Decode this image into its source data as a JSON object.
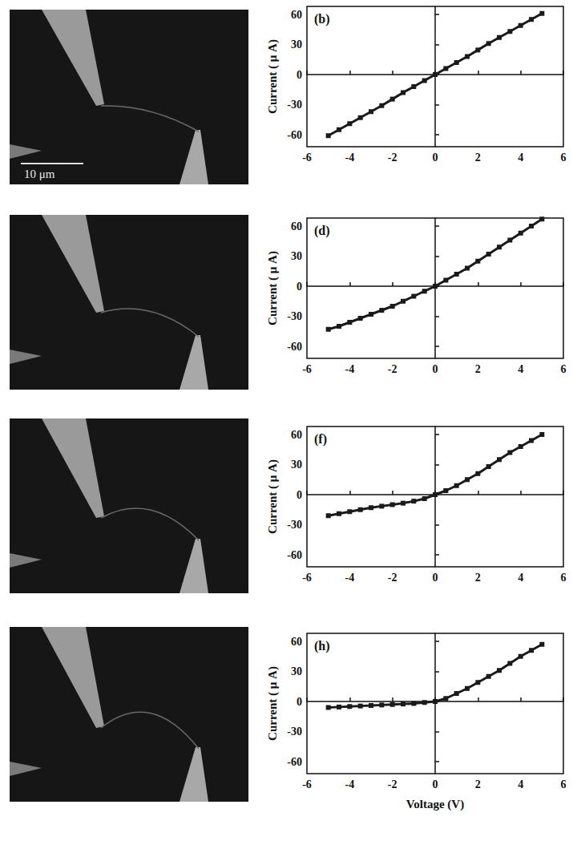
{
  "chart_data": [
    {
      "type": "line",
      "title": "(b)",
      "y_label": "Current ( μ A)",
      "x": [
        -5,
        -4.5,
        -4,
        -3.5,
        -3,
        -2.5,
        -2,
        -1.5,
        -1,
        -0.5,
        0,
        0.5,
        1,
        1.5,
        2,
        2.5,
        3,
        3.5,
        4,
        4.5,
        5
      ],
      "values": [
        -61,
        -55,
        -49,
        -43,
        -37,
        -31,
        -24.5,
        -18,
        -12,
        -6,
        0,
        6,
        12,
        18,
        24.5,
        31,
        37,
        43,
        49,
        55,
        61
      ],
      "xlim": [
        -6,
        6
      ],
      "xticks": [
        -6,
        -4,
        -2,
        0,
        2,
        4,
        6
      ],
      "ylim": [
        -72,
        68
      ],
      "yticks": [
        -60,
        -30,
        0,
        30,
        60
      ],
      "color": "#1a1a1a",
      "marker": "square",
      "grid": false
    },
    {
      "type": "line",
      "title": "(d)",
      "y_label": "Current ( μ A)",
      "x": [
        -5,
        -4.5,
        -4,
        -3.5,
        -3,
        -2.5,
        -2,
        -1.5,
        -1,
        -0.5,
        0,
        0.5,
        1,
        1.5,
        2,
        2.5,
        3,
        3.5,
        4,
        4.5,
        5
      ],
      "values": [
        -43,
        -40,
        -36,
        -32,
        -28,
        -24,
        -20,
        -15,
        -10,
        -5,
        0,
        6,
        12,
        18,
        25,
        32,
        39,
        46,
        53,
        60,
        67
      ],
      "xlim": [
        -6,
        6
      ],
      "xticks": [
        -6,
        -4,
        -2,
        0,
        2,
        4,
        6
      ],
      "ylim": [
        -72,
        68
      ],
      "yticks": [
        -60,
        -30,
        0,
        30,
        60
      ],
      "color": "#1a1a1a",
      "marker": "square",
      "grid": false
    },
    {
      "type": "line",
      "title": "(f)",
      "y_label": "Current ( μ A)",
      "x": [
        -5,
        -4.5,
        -4,
        -3.5,
        -3,
        -2.5,
        -2,
        -1.5,
        -1,
        -0.5,
        0,
        0.5,
        1,
        1.5,
        2,
        2.5,
        3,
        3.5,
        4,
        4.5,
        5
      ],
      "values": [
        -21,
        -19,
        -17,
        -15,
        -13,
        -11.5,
        -10,
        -8.5,
        -6.5,
        -4,
        0,
        4,
        9,
        15,
        21,
        28,
        35,
        42,
        48,
        54,
        60
      ],
      "xlim": [
        -6,
        6
      ],
      "xticks": [
        -6,
        -4,
        -2,
        0,
        2,
        4,
        6
      ],
      "ylim": [
        -72,
        68
      ],
      "yticks": [
        -60,
        -30,
        0,
        30,
        60
      ],
      "color": "#1a1a1a",
      "marker": "square",
      "grid": false
    },
    {
      "type": "line",
      "title": "(h)",
      "y_label": "Current ( μ A)",
      "x_label": "Voltage (V)",
      "x": [
        -5,
        -4.5,
        -4,
        -3.5,
        -3,
        -2.5,
        -2,
        -1.5,
        -1,
        -0.5,
        0,
        0.5,
        1,
        1.5,
        2,
        2.5,
        3,
        3.5,
        4,
        4.5,
        5
      ],
      "values": [
        -6,
        -5.5,
        -5,
        -4.5,
        -4,
        -3.5,
        -3,
        -2.5,
        -2,
        -1,
        0,
        3,
        8,
        13,
        19,
        25,
        31,
        38,
        45,
        51,
        57
      ],
      "xlim": [
        -6,
        6
      ],
      "xticks": [
        -6,
        -4,
        -2,
        0,
        2,
        4,
        6
      ],
      "ylim": [
        -72,
        68
      ],
      "yticks": [
        -60,
        -30,
        0,
        30,
        60
      ],
      "color": "#1a1a1a",
      "marker": "square",
      "grid": false
    }
  ],
  "images": {
    "scale_bar": "10 μm"
  }
}
